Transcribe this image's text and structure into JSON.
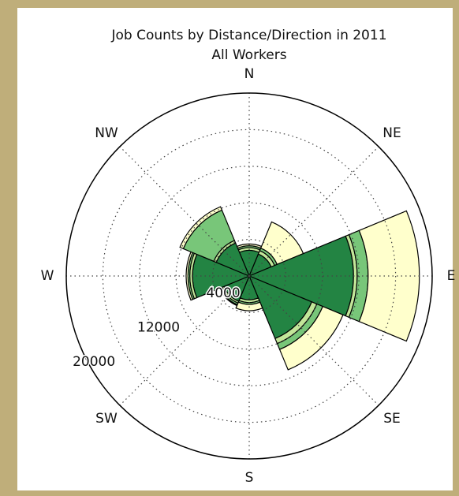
{
  "chart_data": {
    "type": "polar-bar",
    "title": "Job Counts by Distance/Direction in 2011",
    "subtitle": "All Workers",
    "categories": [
      "N",
      "NE",
      "E",
      "SE",
      "S",
      "SW",
      "W",
      "NW"
    ],
    "series": [
      {
        "color": "#238443",
        "values": [
          2800,
          2600,
          11400,
          7400,
          2600,
          3000,
          6200,
          3900
        ]
      },
      {
        "color": "#c2e699",
        "values": [
          300,
          400,
          400,
          600,
          300,
          200,
          300,
          300
        ]
      },
      {
        "color": "#78c679",
        "values": [
          200,
          300,
          1200,
          700,
          200,
          200,
          200,
          3600
        ]
      },
      {
        "color": "#ffffcc",
        "values": [
          200,
          3100,
          5600,
          2400,
          700,
          100,
          200,
          400
        ]
      }
    ],
    "rlim": [
      0,
      20000
    ],
    "rticks": [
      4000,
      12000,
      20000
    ],
    "rgrid": [
      4000,
      8000,
      12000,
      16000
    ]
  }
}
